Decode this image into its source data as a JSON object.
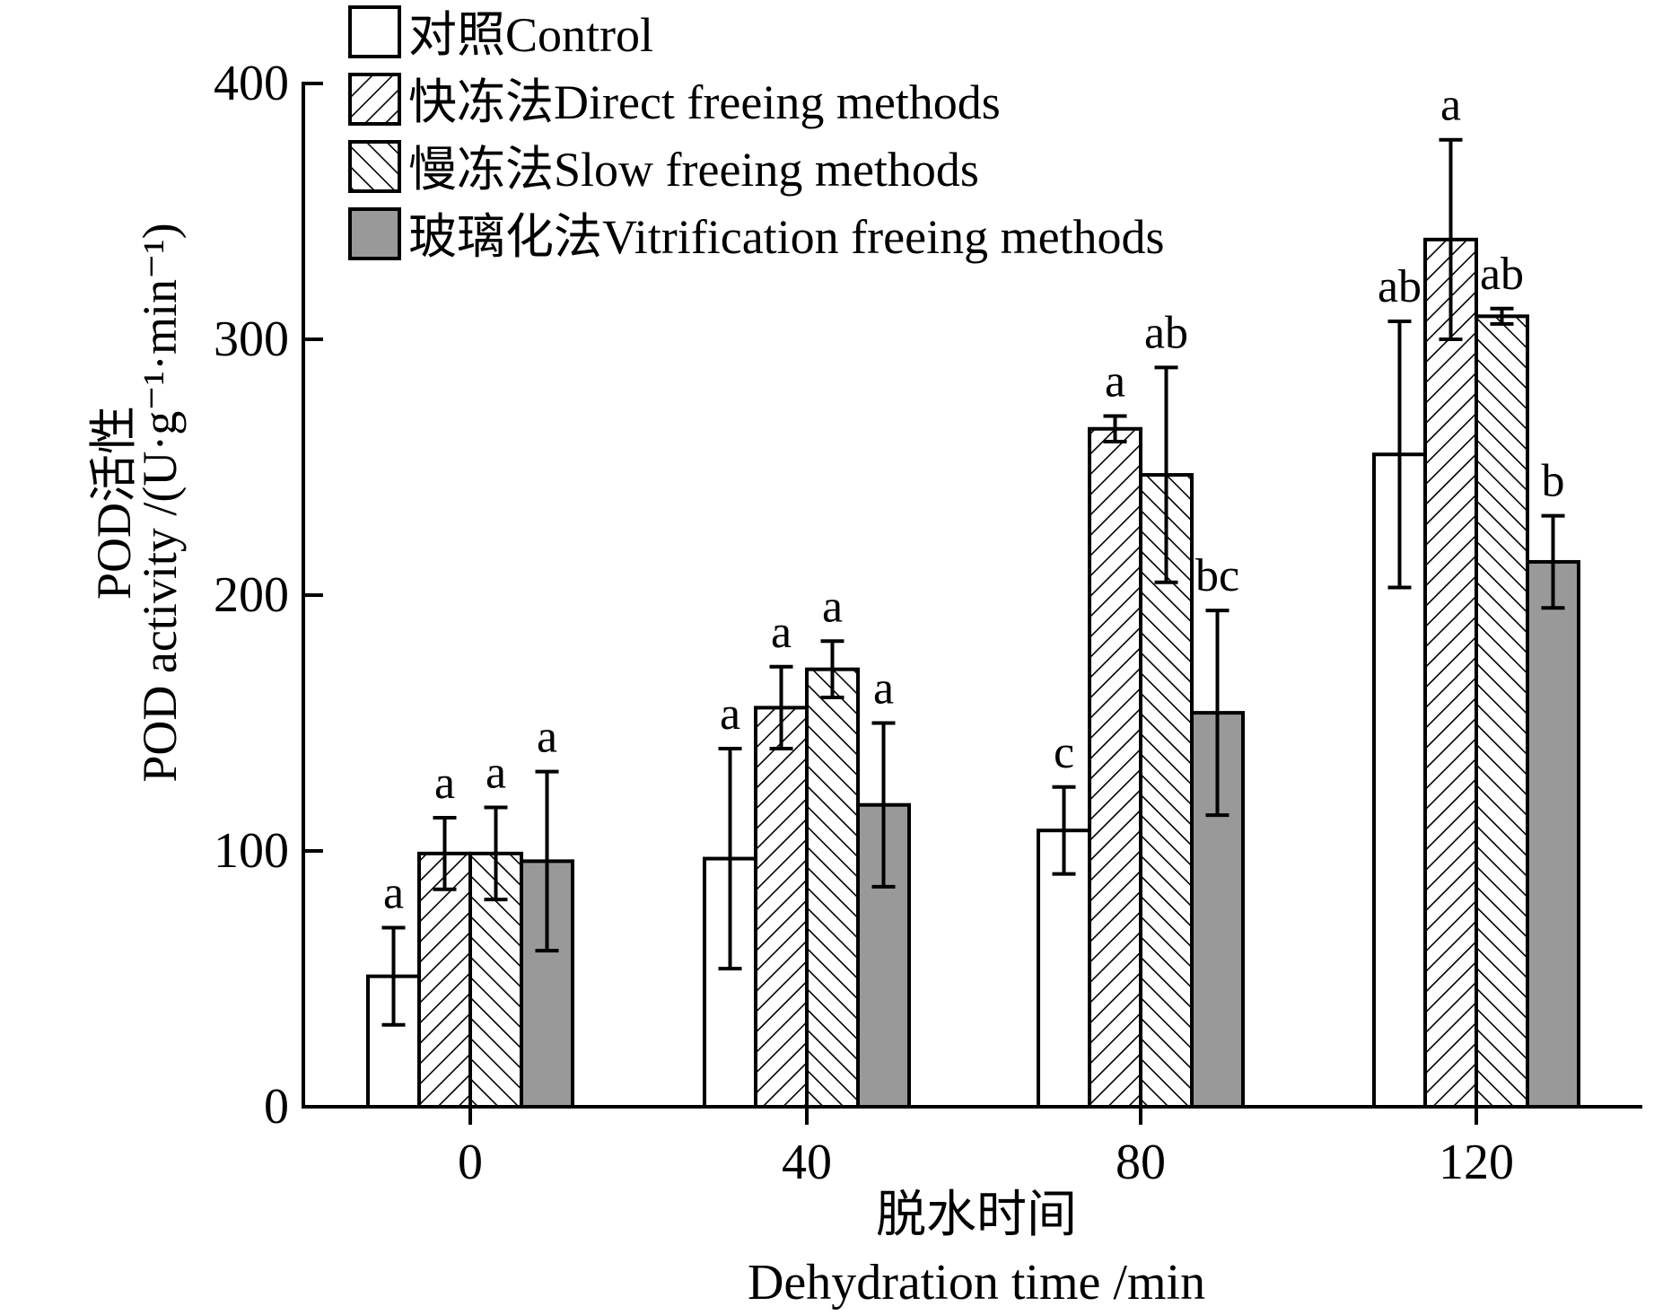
{
  "chart_data": {
    "type": "bar",
    "categories": [
      "0",
      "40",
      "80",
      "120"
    ],
    "ylim": [
      0,
      400
    ],
    "yticks": [
      "0",
      "100",
      "200",
      "300",
      "400"
    ],
    "ylabel_cn": "POD活性",
    "ylabel_en": "POD activity /(U·g⁻¹·min⁻¹)",
    "xlabel_cn": "脱水时间",
    "xlabel_en": "Dehydration time /min",
    "legend_position": "top-left",
    "series": [
      {
        "name": "对照Control",
        "fill": "white",
        "values": [
          51,
          97,
          108,
          255
        ],
        "errors": [
          19,
          43,
          17,
          52
        ],
        "letters": [
          "a",
          "a",
          "c",
          "ab"
        ]
      },
      {
        "name": "快冻法Direct freeing methods",
        "fill": "hatch-forward",
        "values": [
          99,
          156,
          265,
          339
        ],
        "errors": [
          14,
          16,
          5,
          39
        ],
        "letters": [
          "a",
          "a",
          "a",
          "a"
        ]
      },
      {
        "name": "慢冻法Slow freeing methods",
        "fill": "hatch-back",
        "values": [
          99,
          171,
          247,
          309
        ],
        "errors": [
          18,
          11,
          42,
          3
        ],
        "letters": [
          "a",
          "a",
          "ab",
          "ab"
        ]
      },
      {
        "name": "玻璃化法Vitrification freeing methods",
        "fill": "gray",
        "values": [
          96,
          118,
          154,
          213
        ],
        "errors": [
          35,
          32,
          40,
          18
        ],
        "letters": [
          "a",
          "a",
          "bc",
          "b"
        ]
      }
    ]
  },
  "colors": {
    "gray_fill": "#999999",
    "stroke": "#000000",
    "white": "#ffffff"
  }
}
